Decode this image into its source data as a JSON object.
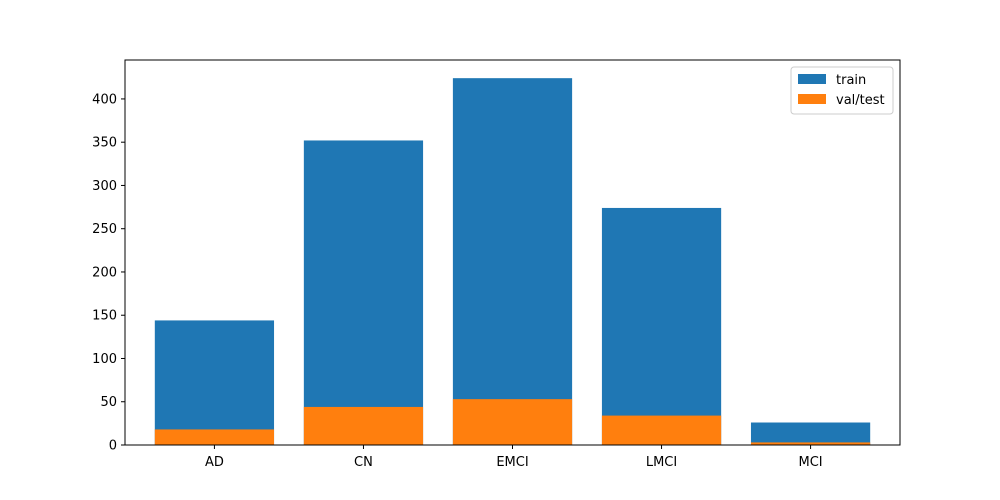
{
  "chart_data": {
    "type": "bar",
    "categories": [
      "AD",
      "CN",
      "EMCI",
      "LMCI",
      "MCI"
    ],
    "series": [
      {
        "name": "train",
        "values": [
          144,
          352,
          424,
          274,
          26
        ],
        "color": "#1f77b4"
      },
      {
        "name": "val/test",
        "values": [
          18,
          44,
          53,
          34,
          3
        ],
        "color": "#ff7f0e"
      }
    ],
    "overlay": true,
    "title": "",
    "xlabel": "",
    "ylabel": "",
    "ylim": [
      0,
      445
    ],
    "yticks": [
      0,
      50,
      100,
      150,
      200,
      250,
      300,
      350,
      400
    ],
    "grid": false,
    "legend_position": "top-right"
  }
}
